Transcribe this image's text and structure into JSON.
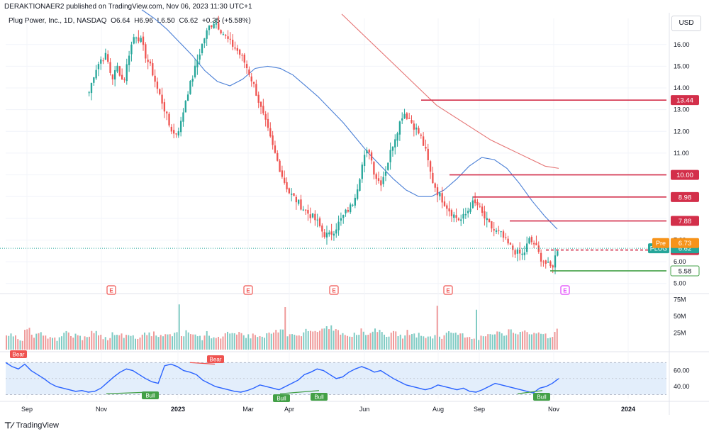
{
  "header": {
    "publish_line": "DERAKTIONAER2 published on TradingView.com, Nov 06, 2023 11:30 UTC+1"
  },
  "legend": {
    "symbol": "Plug Power, Inc., 1D, NASDAQ",
    "open": "O6.64",
    "high": "H6.96",
    "low": "L6.50",
    "close": "C6.62",
    "change": "+0.35 (+5.58%)"
  },
  "currency_label": "USD",
  "footer": {
    "logo_icon": "tradingview-logo-icon",
    "logo_text": "TradingView"
  },
  "colors": {
    "up": "#26a69a",
    "down": "#ef5350",
    "level_line": "#d32f4a",
    "ma_fast": "#4a7fd6",
    "ma_slow": "#e57373",
    "support": "#43a047",
    "rsi_line": "#2962ff",
    "rsi_band": "#e3eefb"
  },
  "chart_data": {
    "type": "candlestick",
    "price_axis": {
      "ticks": [
        "16.00",
        "15.00",
        "14.00",
        "13.00",
        "12.00",
        "11.00",
        "10.00",
        "9.00",
        "8.00",
        "7.00",
        "6.00",
        "5.00"
      ],
      "range": [
        4.6,
        17.2
      ]
    },
    "time_axis": {
      "labels": [
        "Sep",
        "Nov",
        "2023",
        "Mar",
        "Apr",
        "Jun",
        "Aug",
        "Sep",
        "Nov",
        "2024"
      ]
    },
    "close_path": [
      13.8,
      14.8,
      15.3,
      15.5,
      14.4,
      15.0,
      14.2,
      15.6,
      16.5,
      16.2,
      15.4,
      14.8,
      13.9,
      13.2,
      12.3,
      11.8,
      12.3,
      13.6,
      14.4,
      15.3,
      16.2,
      16.8,
      17.1,
      16.7,
      16.3,
      16.0,
      15.7,
      15.3,
      14.7,
      14.0,
      13.1,
      12.3,
      11.4,
      10.6,
      9.8,
      9.2,
      8.9,
      8.6,
      8.3,
      8.1,
      7.8,
      7.3,
      7.2,
      7.5,
      7.9,
      8.3,
      8.6,
      9.5,
      10.7,
      11.2,
      10.0,
      9.6,
      10.3,
      11.3,
      12.1,
      12.9,
      12.6,
      12.2,
      11.8,
      11.0,
      9.8,
      9.2,
      8.8,
      8.4,
      8.1,
      7.9,
      8.2,
      8.7,
      8.6,
      8.1,
      7.7,
      7.4,
      7.3,
      6.9,
      6.6,
      6.4,
      6.3,
      7.0,
      6.8,
      6.2,
      5.9,
      5.7,
      6.6
    ],
    "ma50_path": [
      17.6,
      17.2,
      16.7,
      16.1,
      15.5,
      14.8,
      14.3,
      14.1,
      14.4,
      14.9,
      15.0,
      14.9,
      14.6,
      14.1,
      13.6,
      13.0,
      12.4,
      11.7,
      11.0,
      10.4,
      9.8,
      9.3,
      9.0,
      9.0,
      9.3,
      9.8,
      10.4,
      10.8,
      10.7,
      10.3,
      9.6,
      8.8,
      8.1,
      7.5
    ],
    "ma200_path": [
      17.4,
      16.8,
      16.2,
      15.6,
      15.0,
      14.4,
      13.8,
      13.2,
      12.8,
      12.4,
      12.0,
      11.6,
      11.3,
      11.0,
      10.7,
      10.4,
      10.3
    ],
    "levels": [
      {
        "label": "13.44",
        "value": 13.44
      },
      {
        "label": "10.00",
        "value": 10.0
      },
      {
        "label": "8.98",
        "value": 8.98
      },
      {
        "label": "7.88",
        "value": 7.88
      },
      {
        "label": "6.54",
        "value": 6.54
      }
    ],
    "support_level": {
      "label": "5.58",
      "value": 5.58
    },
    "last_price": {
      "tag": "PLUG",
      "label": "6.62",
      "value": 6.62
    },
    "pre_market": {
      "tag": "Pre",
      "label": "6.73",
      "value": 6.73
    },
    "earnings_marker": "E",
    "earnings_count": 5,
    "volume_axis": {
      "ticks": [
        "75M",
        "50M",
        "25M"
      ],
      "range": [
        0,
        80
      ]
    },
    "volume_path": [
      18,
      22,
      15,
      30,
      20,
      25,
      19,
      21,
      17,
      24,
      20,
      18,
      22,
      26,
      19,
      17,
      23,
      21,
      25,
      18,
      20,
      22,
      24,
      19,
      21,
      23,
      20,
      26,
      22,
      18,
      24,
      20,
      19,
      23,
      21,
      25,
      20,
      22,
      18,
      24,
      26,
      28,
      22,
      20,
      24,
      30,
      26,
      28,
      34,
      30,
      24,
      22,
      26,
      28,
      24,
      30,
      26,
      22,
      24,
      20,
      26,
      22,
      20,
      18,
      22,
      20,
      24,
      26,
      22,
      20,
      18,
      22,
      24,
      26,
      22,
      28,
      24,
      30,
      26,
      22,
      24,
      20,
      28
    ],
    "volume_spikes": [
      62,
      68,
      64,
      70,
      66,
      60,
      72
    ],
    "rsi_axis": {
      "ticks": [
        "60.00",
        "40.00"
      ],
      "range": [
        25,
        80
      ]
    },
    "rsi_path": [
      70,
      65,
      62,
      68,
      60,
      55,
      50,
      44,
      40,
      38,
      36,
      34,
      35,
      33,
      34,
      38,
      45,
      52,
      58,
      62,
      60,
      55,
      50,
      46,
      44,
      66,
      68,
      65,
      60,
      58,
      55,
      48,
      44,
      40,
      38,
      36,
      34,
      33,
      35,
      38,
      42,
      40,
      38,
      36,
      40,
      44,
      48,
      55,
      58,
      62,
      60,
      55,
      50,
      52,
      58,
      62,
      65,
      62,
      58,
      60,
      55,
      50,
      46,
      42,
      40,
      38,
      36,
      38,
      42,
      40,
      38,
      36,
      38,
      34,
      33,
      36,
      40,
      44,
      42,
      40,
      38,
      36,
      34,
      32,
      38,
      40,
      44,
      50
    ],
    "rsi_band": [
      30,
      70
    ],
    "signals": [
      "Bear",
      "Bear",
      "Bull",
      "Bull",
      "Bull",
      "Bull"
    ]
  }
}
